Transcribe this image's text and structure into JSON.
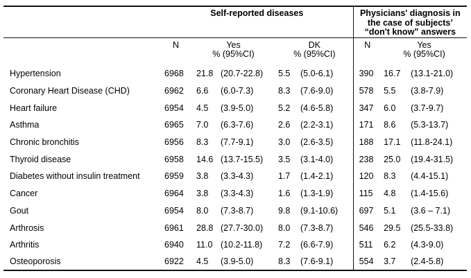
{
  "table": {
    "group_headers": {
      "self_reported": "Self-reported diseases",
      "physicians_line1": "Physicians' diagnosis in",
      "physicians_line2": "the case of subjects’",
      "physicians_line3": "“don't know” answers"
    },
    "columns": {
      "n": "N",
      "yes": "Yes",
      "yes_ci": "% (95%CI)",
      "dk": "DK",
      "dk_ci": "% (95%CI)",
      "phys_n": "N",
      "phys_yes": "Yes",
      "phys_yes_ci": "% (95%CI)"
    },
    "rows": [
      {
        "label": "Hypertension",
        "n": "6968",
        "yes_pct": "21.8",
        "yes_ci": "(20.7-22.8)",
        "dk_pct": "5.5",
        "dk_ci": "(5.0-6.1)",
        "phys_n": "390",
        "phys_yes_pct": "16.7",
        "phys_yes_ci": "(13.1-21.0)"
      },
      {
        "label": "Coronary Heart Disease (CHD)",
        "n": "6962",
        "yes_pct": "6.6",
        "yes_ci": "(6.0-7.3)",
        "dk_pct": "8.3",
        "dk_ci": "(7.6-9.0)",
        "phys_n": "578",
        "phys_yes_pct": "5.5",
        "phys_yes_ci": "(3.8-7.9)"
      },
      {
        "label": "Heart failure",
        "n": "6954",
        "yes_pct": "4.5",
        "yes_ci": "(3.9-5.0)",
        "dk_pct": "5.2",
        "dk_ci": "(4.6-5.8)",
        "phys_n": "347",
        "phys_yes_pct": "6.0",
        "phys_yes_ci": "(3.7-9.7)"
      },
      {
        "label": "Asthma",
        "n": "6965",
        "yes_pct": "7.0",
        "yes_ci": "(6.3-7.6)",
        "dk_pct": "2.6",
        "dk_ci": "(2.2-3.1)",
        "phys_n": "171",
        "phys_yes_pct": "8.6",
        "phys_yes_ci": "(5.3-13.7)"
      },
      {
        "label": "Chronic bronchitis",
        "n": "6956",
        "yes_pct": "8.3",
        "yes_ci": "(7.7-9.1)",
        "dk_pct": "3.0",
        "dk_ci": "(2.6-3.5)",
        "phys_n": "188",
        "phys_yes_pct": "17.1",
        "phys_yes_ci": "(11.8-24.1)"
      },
      {
        "label": "Thyroid disease",
        "n": "6958",
        "yes_pct": "14.6",
        "yes_ci": "(13.7-15.5)",
        "dk_pct": "3.5",
        "dk_ci": "(3.1-4.0)",
        "phys_n": "238",
        "phys_yes_pct": "25.0",
        "phys_yes_ci": "(19.4-31.5)"
      },
      {
        "label": "Diabetes without insulin treatment",
        "n": "6959",
        "yes_pct": "3.8",
        "yes_ci": "(3.3-4.3)",
        "dk_pct": "1.7",
        "dk_ci": "(1.4-2.1)",
        "phys_n": "120",
        "phys_yes_pct": "8.3",
        "phys_yes_ci": "(4.4-15.1)"
      },
      {
        "label": "Cancer",
        "n": "6964",
        "yes_pct": "3.8",
        "yes_ci": "(3.3-4.3)",
        "dk_pct": "1.6",
        "dk_ci": "(1.3-1.9)",
        "phys_n": "115",
        "phys_yes_pct": "4.8",
        "phys_yes_ci": "(1.4-15.6)"
      },
      {
        "label": "Gout",
        "n": "6954",
        "yes_pct": "8.0",
        "yes_ci": "(7.3-8.7)",
        "dk_pct": "9.8",
        "dk_ci": "(9.1-10.6)",
        "phys_n": "697",
        "phys_yes_pct": "5.1",
        "phys_yes_ci": "(3.6 – 7.1)"
      },
      {
        "label": "Arthrosis",
        "n": "6961",
        "yes_pct": "28.8",
        "yes_ci": "(27.7-30.0)",
        "dk_pct": "8.0",
        "dk_ci": "(7.3-8.7)",
        "phys_n": "546",
        "phys_yes_pct": "29.5",
        "phys_yes_ci": "(25.5-33.8)"
      },
      {
        "label": "Arthritis",
        "n": "6940",
        "yes_pct": "11.0",
        "yes_ci": "(10.2-11.8)",
        "dk_pct": "7.2",
        "dk_ci": "(6.6-7.9)",
        "phys_n": "511",
        "phys_yes_pct": "6.2",
        "phys_yes_ci": "(4.3-9.0)"
      },
      {
        "label": "Osteoporosis",
        "n": "6922",
        "yes_pct": "4.5",
        "yes_ci": "(3.9-5.0)",
        "dk_pct": "8.3",
        "dk_ci": "(7.6-9.1)",
        "phys_n": "554",
        "phys_yes_pct": "3.7",
        "phys_yes_ci": "(2.4-5.8)"
      }
    ]
  }
}
